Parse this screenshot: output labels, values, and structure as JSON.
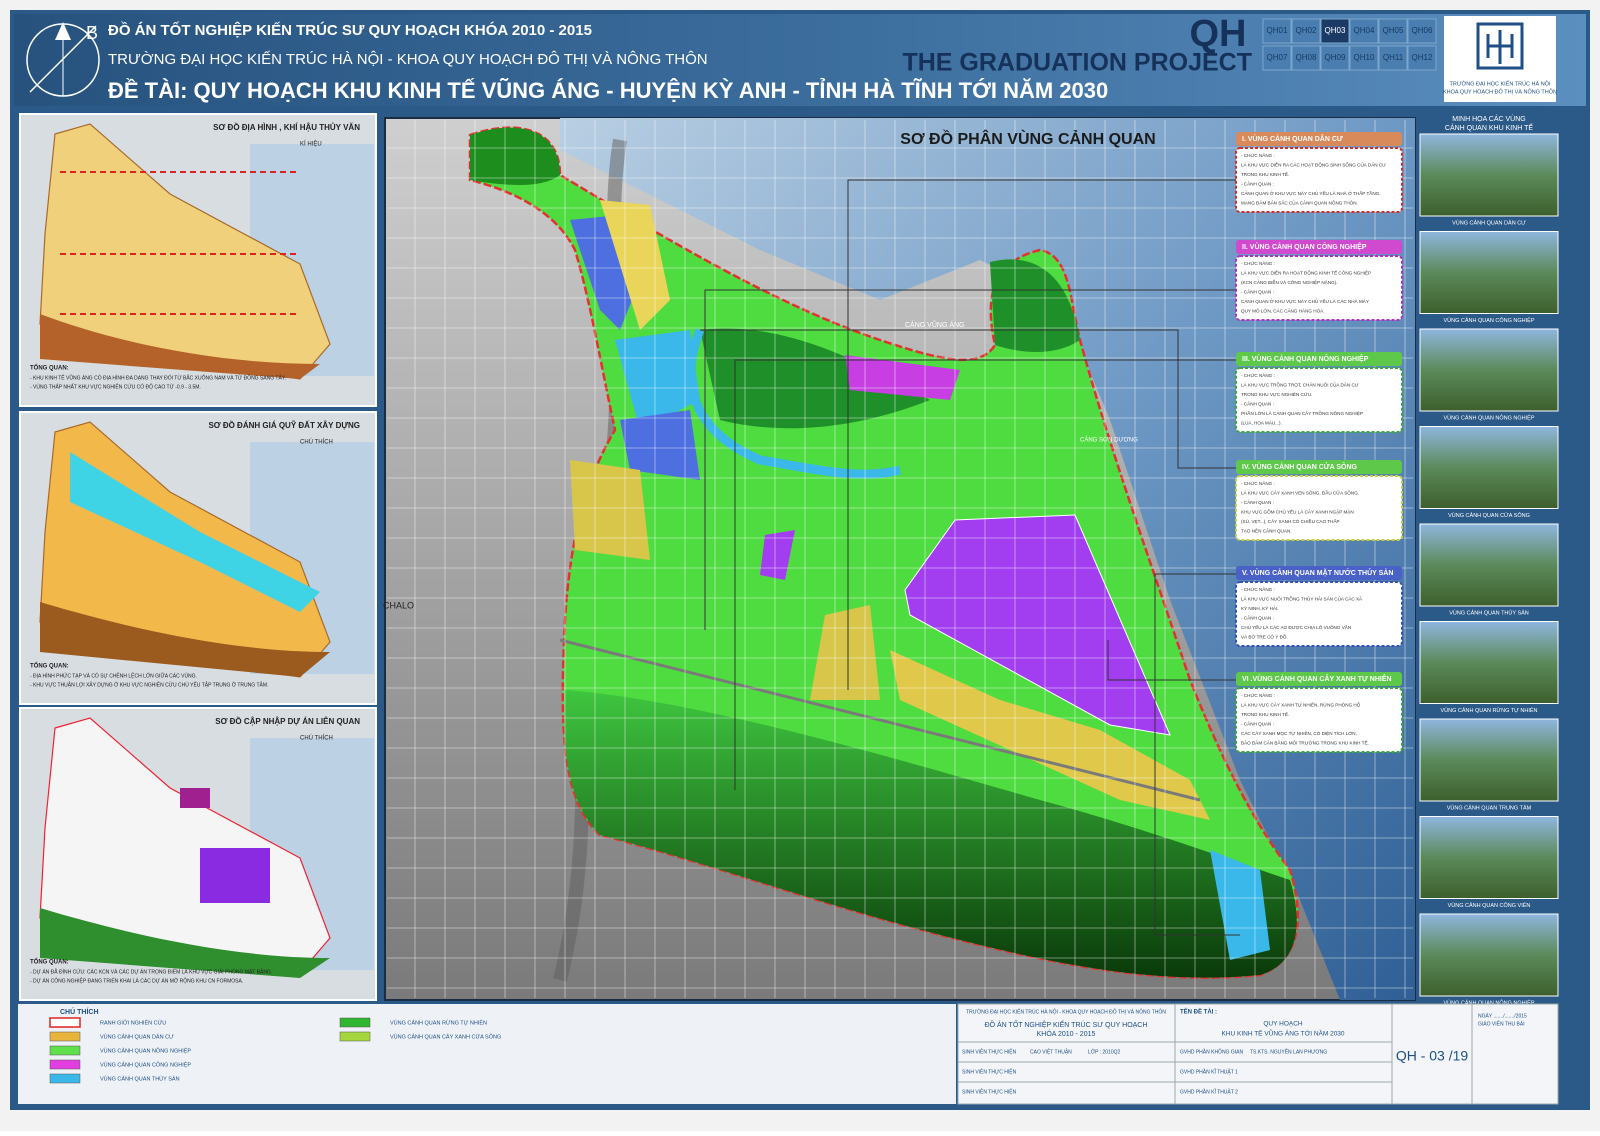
{
  "header": {
    "compass": "B",
    "course": "ĐỒ ÁN TỐT NGHIỆP KIẾN TRÚC SƯ QUY HOẠCH KHÓA 2010 - 2015",
    "school": "TRƯỜNG ĐẠI HỌC KIẾN TRÚC HÀ NỘI - KHOA QUY HOẠCH ĐÔ THỊ VÀ NÔNG THÔN",
    "topic": "ĐỀ TÀI:  QUY HOẠCH KHU KINH TẾ VŨNG ÁNG - HUYỆN KỲ ANH - TỈNH HÀ TĨNH TỚI NĂM 2030",
    "mark": "QH",
    "project": "THE GRADUATION PROJECT",
    "sheets": [
      "QH01",
      "QH02",
      "QH03",
      "QH04",
      "QH05",
      "QH06",
      "QH07",
      "QH08",
      "QH09",
      "QH10",
      "QH11",
      "QH12"
    ],
    "active_sheet": "QH03",
    "logo_lines": [
      "TRƯỜNG ĐẠI HỌC KIẾN TRÚC HÀ NỘI",
      "KHOA QUY HOẠCH ĐÔ THỊ VÀ NÔNG THÔN"
    ]
  },
  "left_panels": [
    {
      "title": "SƠ ĐỒ ĐỊA HÌNH , KHÍ HẬU THỦY VĂN",
      "legend_title": "KÍ HIỆU",
      "summary_title": "TỔNG QUAN:",
      "summary": [
        "- KHU KINH TẾ VŨNG ÁNG CÓ ĐỊA HÌNH ĐA DẠNG THAY ĐỔI TỪ BẮC XUỐNG NAM VÀ TỪ ĐÔNG SANG TÂY.",
        "- VÙNG THẤP NHẤT KHU VỰC NGHIÊN CỨU CÓ ĐỘ CAO TỪ -0.9 - 3.5M."
      ]
    },
    {
      "title": "SƠ ĐỒ ĐÁNH GIÁ QUỸ ĐẤT XÂY DỰNG",
      "legend_title": "CHÚ THÍCH",
      "summary_title": "TỔNG QUAN:",
      "summary": [
        "- ĐỊA HÌNH PHỨC TẠP VÀ CÓ SỰ CHÊNH LỆCH LỚN GIỮA CÁC VÙNG.",
        "- KHU VỰC THUẬN LỢI XÂY DỰNG Ở KHU VỰC NGHIÊN CỨU CHỦ YẾU TẬP TRUNG Ở TRUNG TÂM."
      ]
    },
    {
      "title": "SƠ ĐỒ CẬP NHẬP DỰ ÁN LIÊN QUAN",
      "legend_title": "CHÚ THÍCH",
      "summary_title": "TỔNG QUAN:",
      "summary": [
        "- DỰ ÁN ĐÃ ĐÌNH CỨU: CÁC KCN VÀ CÁC DỰ ÁN TRỌNG ĐIỂM LÀ KHU VỰC GIẢI PHÓNG MẶT BẰNG.",
        "- DỰ ÁN CÔNG NGHIỆP ĐANG TRIỂN KHAI LÀ CÁC DỰ ÁN MỞ RỘNG KHU CN FORMOSA."
      ]
    }
  ],
  "main_map": {
    "title": "SƠ ĐỒ PHÂN VÙNG CẢNH QUAN",
    "places": [
      "CẢNG VŨNG ÁNG",
      "CHALO",
      "CẢNG SƠN DƯƠNG"
    ],
    "zones": [
      {
        "title": "I. VÙNG CẢNH QUAN DÂN CƯ",
        "lines": [
          "- CHỨC NĂNG :",
          "LÀ KHU VỰC DIỄN RA CÁC HOẠT ĐỘNG SINH SỐNG CỦA DÂN CƯ",
          "TRONG KHU KINH TẾ.",
          "- CẢNH QUAN :",
          "CẢNH QUAN Ở KHU VỰC NÀY CHỦ YẾU LÀ NHÀ Ở THẤP TẦNG,",
          "MANG ĐẬM BẢN SẮC CỦA CẢNH QUAN NÔNG THÔN."
        ]
      },
      {
        "title": "II. VÙNG CẢNH QUAN CÔNG NGHIỆP",
        "lines": [
          "- CHỨC NĂNG :",
          "LÀ KHU VỰC DIỄN RA HOẠT ĐỘNG KINH TẾ CÔNG NGHIỆP",
          "(KCN CẢNG BIỂN VÀ CÔNG NGHIỆP NẶNG).",
          "- CẢNH QUAN :",
          "CẢNH QUAN Ở KHU VỰC NÀY CHỦ YẾU LÀ CÁC NHÀ MÁY",
          "QUY MÔ LỚN, CÁC CẢNG HÀNG HÓA."
        ]
      },
      {
        "title": "III. VÙNG CẢNH QUAN NÔNG NGHIỆP",
        "lines": [
          "- CHỨC NĂNG :",
          "LÀ KHU VỰC TRỒNG TRỌT, CHĂN NUÔI CỦA DÂN CƯ",
          "TRONG KHU VỰC NGHIÊN CỨU.",
          "- CẢNH QUAN :",
          "PHẦN LỚN LÀ CẢNH QUAN CÂY TRỒNG NÔNG NGHIỆP",
          "(LÚA, HOA MÀU...)."
        ]
      },
      {
        "title": "IV. VÙNG CẢNH QUAN CỬA SÔNG",
        "lines": [
          "- CHỨC NĂNG :",
          "LÀ KHU VỰC CÂY XANH VEN SÔNG, ĐẦU CỬA SÔNG.",
          "- CẢNH QUAN :",
          "KHU VỰC GỒM CHỦ YẾU LÀ CÂY XANH NGẬP MẶN",
          "(SÚ, VẸT...), CÂY XANH CÓ CHIỀU CAO THẤP",
          "TẠO NÊN CẢNH QUAN."
        ]
      },
      {
        "title": "V. VÙNG CẢNH QUAN MẶT NƯỚC THỦY SẢN",
        "lines": [
          "- CHỨC NĂNG :",
          "LÀ KHU VỰC NUÔI TRỒNG THỦY HẢI SẢN CỦA CÁC XÃ",
          "KỲ NINH, KỲ HẢI.",
          "- CẢNH QUAN :",
          "CHỦ YẾU LÀ CÁC AO ĐƯỢC CHIA LÔ VUÔNG VẮN",
          "VÀ BỜ TRE CÓ Ý ĐỒ."
        ]
      },
      {
        "title": "VI .VÙNG CẢNH QUAN CÂY XANH TỰ NHIÊN",
        "lines": [
          "- CHỨC NĂNG :",
          "LÀ KHU VỰC CÂY XANH TỰ NHIÊN, RỪNG PHÒNG HỘ",
          "TRONG KHU KINH TẾ.",
          "- CẢNH QUAN :",
          "CÁC CÂY XANH MỌC TỰ NHIÊN, CÓ DIỆN TÍCH LỚN,",
          "BẢO ĐẢM CÂN BẰNG MÔI TRƯỜNG TRONG KHU KINH TẾ."
        ]
      }
    ]
  },
  "gallery": {
    "title_lines": [
      "MINH HỌA CÁC VÙNG",
      "CẢNH QUAN  KHU KINH TẾ"
    ],
    "captions": [
      "VÙNG CẢNH QUAN DÂN CƯ",
      "VÙNG CẢNH QUAN CÔNG NGHIỆP",
      "VÙNG CẢNH QUAN NÔNG NGHIỆP",
      "VÙNG CẢNH QUAN CỬA SÔNG",
      "VÙNG CẢNH QUAN THỦY SẢN",
      "VÙNG CẢNH QUAN RỪNG TỰ NHIÊN",
      "VÙNG CẢNH QUAN TRUNG TÂM",
      "VÙNG CẢNH QUAN CÔNG VIÊN",
      "VÙNG CẢNH QUAN NÔNG NGHIỆP"
    ]
  },
  "legend": {
    "title": "CHÚ THÍCH",
    "items": [
      {
        "label": "RANH GIỚI NGHIÊN CỨU",
        "color": "#ffffff"
      },
      {
        "label": "VÙNG CẢNH QUAN DÂN CƯ",
        "color": "#e9b43c"
      },
      {
        "label": "VÙNG CẢNH QUAN NÔNG NGHIỆP",
        "color": "#5fe04a"
      },
      {
        "label": "VÙNG CẢNH QUAN CÔNG NGHIỆP",
        "color": "#e23ee2"
      },
      {
        "label": "VÙNG CẢNH QUAN THỦY SẢN",
        "color": "#3ab8ea"
      },
      {
        "label": "VÙNG CẢNH QUAN RỪNG TỰ NHIÊN",
        "color": "#2fb52f"
      },
      {
        "label": "VÙNG CẢNH QUAN CÂY XANH CỬA SÔNG",
        "color": "#a6d63e"
      }
    ]
  },
  "title_block": {
    "school": "TRƯỜNG ĐẠI HỌC KIẾN TRÚC HÀ NỘI - KHOA QUY HOẠCH ĐÔ THỊ VÀ NÔNG THÔN",
    "project": "ĐỒ ÁN TỐT NGHIỆP KIẾN TRÚC SƯ QUY HOẠCH",
    "course": "KHÓA 2010 - 2015",
    "topic_label": "TÊN ĐỀ TÀI :",
    "topic_lines": [
      "QUY HOẠCH",
      "KHU KINH TẾ VŨNG ÁNG TỚI NĂM 2030"
    ],
    "rows": [
      [
        "SINH VIÊN THỰC HIỆN",
        "CAO VIỆT THUẬN",
        "LỚP : 2010Q2",
        "GVHD PHẦN KHÔNG GIAN",
        "TS.KTS. NGUYỄN LAN PHƯƠNG"
      ],
      [
        "SINH VIÊN THỰC HIỆN",
        "GVHD PHẦN KĨ THUẬT 1"
      ],
      [
        "SINH VIÊN THỰC HIỆN",
        "GVHD PHẦN KĨ THUẬT 2"
      ]
    ],
    "sheet": "QH - 03 /19",
    "date": "NGÀY ......./......./2015",
    "receiver": "GIÁO VIÊN THU BÀI"
  }
}
